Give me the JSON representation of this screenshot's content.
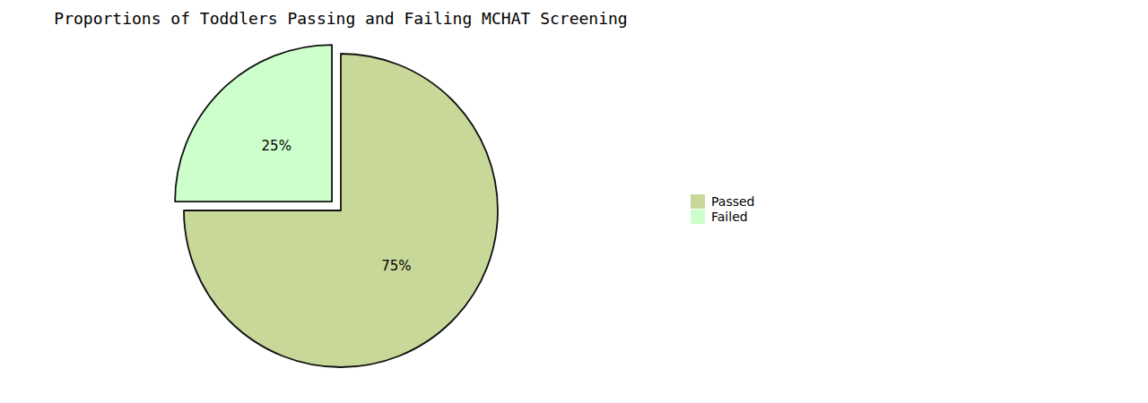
{
  "chart_data": {
    "type": "pie",
    "title": "Proportions of Toddlers Passing and Failing MCHAT Screening",
    "categories": [
      "Passed",
      "Failed"
    ],
    "values": [
      75,
      25
    ],
    "value_labels": [
      "75%",
      "25%"
    ],
    "colors": [
      "#c8d898",
      "#ccffcc"
    ],
    "data_labels": true,
    "legend": "right"
  }
}
